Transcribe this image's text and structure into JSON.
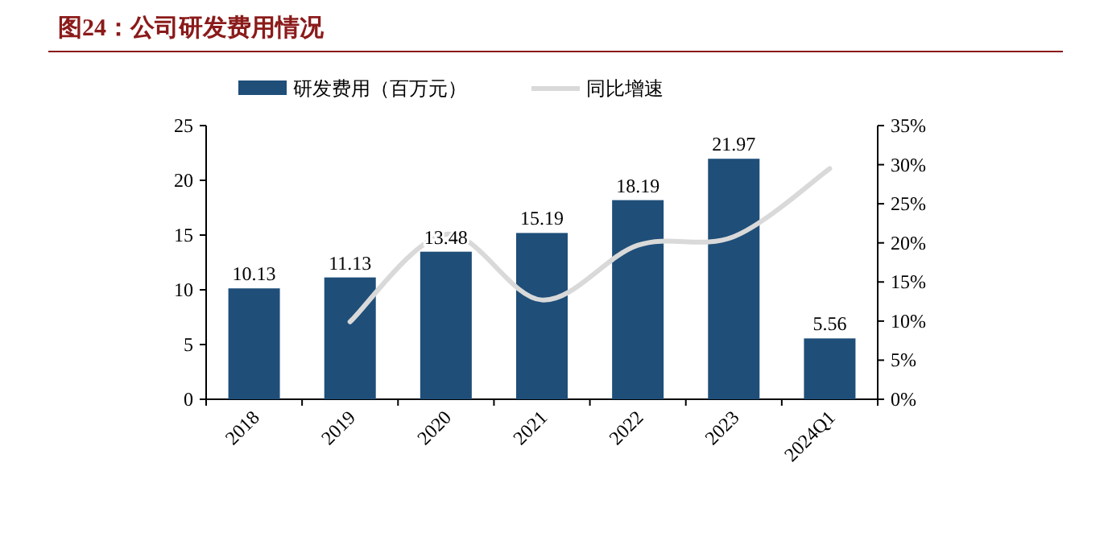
{
  "chart_data": {
    "type": "bar",
    "title": "图24：公司研发费用情况",
    "categories": [
      "2018",
      "2019",
      "2020",
      "2021",
      "2022",
      "2023",
      "2024Q1"
    ],
    "series": [
      {
        "name": "研发费用（百万元）",
        "color": "#1f4e79",
        "values": [
          10.13,
          11.13,
          13.48,
          15.19,
          18.19,
          21.97,
          5.56
        ],
        "value_labels": [
          "10.13",
          "11.13",
          "13.48",
          "15.19",
          "18.19",
          "21.97",
          "5.56"
        ]
      },
      {
        "name": "同比增速",
        "type": "line",
        "axis": "y2",
        "color": "#d9d9d9",
        "values": [
          null,
          9.9,
          21.1,
          12.7,
          19.7,
          20.8,
          29.5
        ]
      }
    ],
    "ylim": [
      0,
      25
    ],
    "yticks": [
      0,
      5,
      10,
      15,
      20,
      25
    ],
    "y2lim": [
      0,
      35
    ],
    "y2ticks": [
      {
        "value": 0,
        "label": "0%"
      },
      {
        "value": 5,
        "label": "5%"
      },
      {
        "value": 10,
        "label": "10%"
      },
      {
        "value": 15,
        "label": "15%"
      },
      {
        "value": 20,
        "label": "20%"
      },
      {
        "value": 25,
        "label": "25%"
      },
      {
        "value": 30,
        "label": "30%"
      },
      {
        "value": 35,
        "label": "35%"
      }
    ],
    "legend": "top",
    "grid": false
  }
}
